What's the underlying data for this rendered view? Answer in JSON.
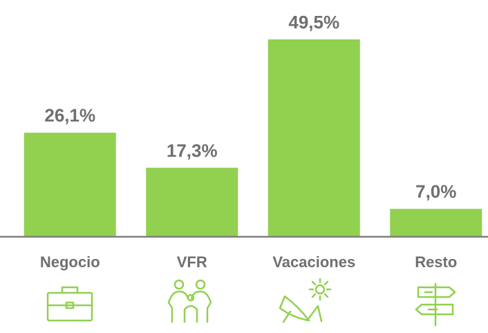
{
  "chart_data": {
    "type": "bar",
    "categories": [
      "Negocio",
      "VFR",
      "Vacaciones",
      "Resto"
    ],
    "values": [
      26.1,
      17.3,
      49.5,
      7.0
    ],
    "value_labels": [
      "26,1%",
      "17,3%",
      "49,5%",
      "7,0%"
    ],
    "color": "#92d050"
  }
}
